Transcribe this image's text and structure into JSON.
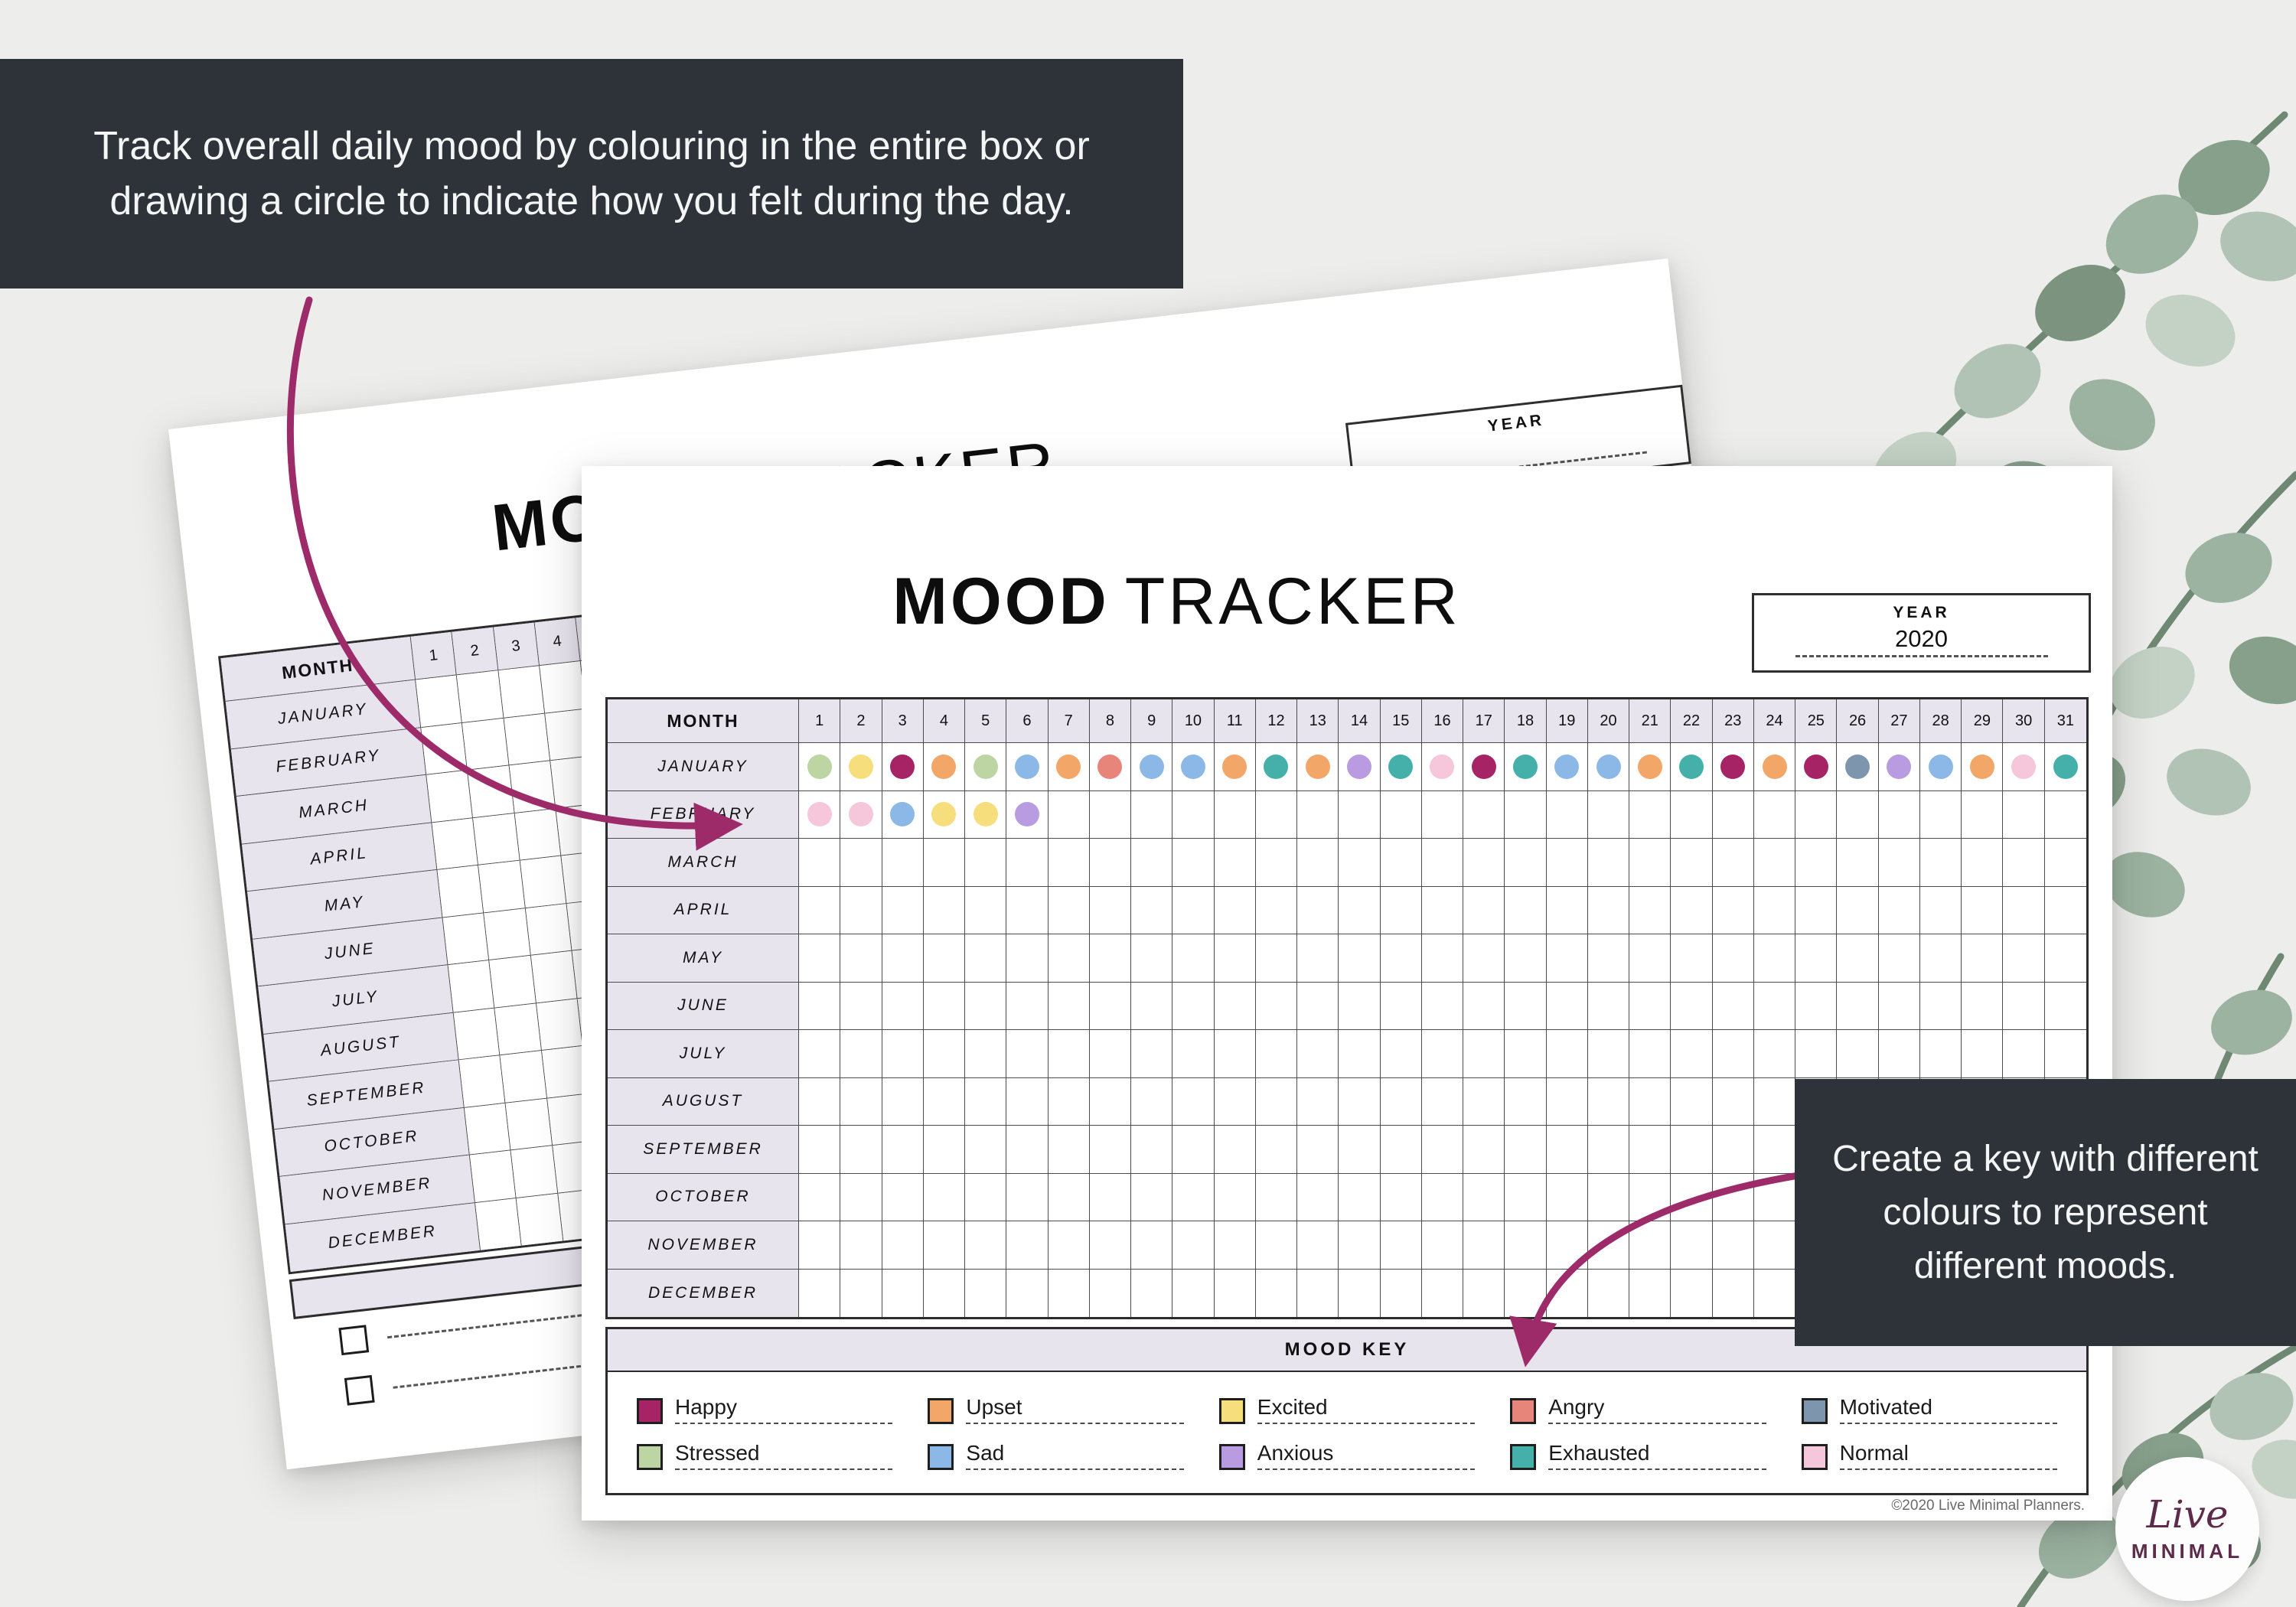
{
  "callouts": {
    "top": "Track overall daily mood by colouring in the entire box or drawing a circle to indicate how you felt during the day.",
    "right": "Create a key with different colours to represent different moods."
  },
  "tracker": {
    "title_primary": "MOOD",
    "title_secondary": "TRACKER",
    "year_label": "YEAR",
    "year_value": "2020",
    "month_header": "MONTH",
    "days": [
      "1",
      "2",
      "3",
      "4",
      "5",
      "6",
      "7",
      "8",
      "9",
      "10",
      "11",
      "12",
      "13",
      "14",
      "15",
      "16",
      "17",
      "18",
      "19",
      "20",
      "21",
      "22",
      "23",
      "24",
      "25",
      "26",
      "27",
      "28",
      "29",
      "30",
      "31"
    ],
    "months": [
      "JANUARY",
      "FEBRUARY",
      "MARCH",
      "APRIL",
      "MAY",
      "JUNE",
      "JULY",
      "AUGUST",
      "SEPTEMBER",
      "OCTOBER",
      "NOVEMBER",
      "DECEMBER"
    ],
    "mood_key_title": "MOOD KEY",
    "copyright": "©2020 Live Minimal Planners."
  },
  "mood_key": [
    {
      "label": "Happy",
      "color": "#a62466"
    },
    {
      "label": "Upset",
      "color": "#f2a668"
    },
    {
      "label": "Excited",
      "color": "#f6de7d"
    },
    {
      "label": "Angry",
      "color": "#e8857b"
    },
    {
      "label": "Motivated",
      "color": "#7d95ad"
    },
    {
      "label": "Stressed",
      "color": "#bcd5a2"
    },
    {
      "label": "Sad",
      "color": "#8cb8e8"
    },
    {
      "label": "Anxious",
      "color": "#b89be0"
    },
    {
      "label": "Exhausted",
      "color": "#45b0a9"
    },
    {
      "label": "Normal",
      "color": "#f6c6da"
    }
  ],
  "entries": {
    "JANUARY": [
      "stressed",
      "excited",
      "happy",
      "upset",
      "stressed",
      "sad",
      "upset",
      "angry",
      "sad",
      "sad",
      "upset",
      "exhausted",
      "upset",
      "anxious",
      "exhausted",
      "normal",
      "happy",
      "exhausted",
      "sad",
      "sad",
      "upset",
      "exhausted",
      "happy",
      "upset",
      "happy",
      "motivated",
      "anxious",
      "sad",
      "upset",
      "normal",
      "exhausted"
    ],
    "FEBRUARY": [
      "normal",
      "normal",
      "sad",
      "excited",
      "excited",
      "anxious"
    ]
  },
  "logo": {
    "script": "Live",
    "caps": "MINIMAL"
  },
  "colors": {
    "arrow": "#9e2b69",
    "callout_bg": "#2d3338",
    "header_bg": "#e7e4ee",
    "paper": "#ffffff",
    "background": "#edeeec"
  }
}
